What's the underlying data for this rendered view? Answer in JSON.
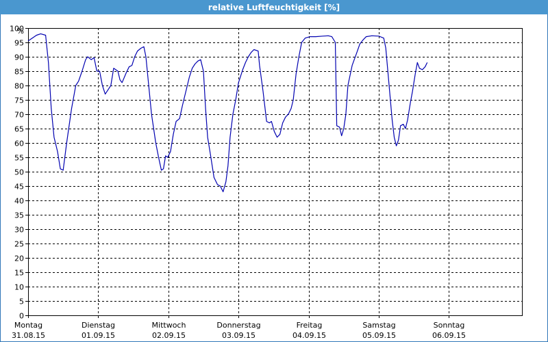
{
  "window": {
    "title": "relative Luftfeuchtigkeit [%]"
  },
  "colors": {
    "titlebar": "#4a97cf",
    "series": "#0000b0",
    "grid": "#000000"
  },
  "chart_data": {
    "type": "line",
    "title": "relative Luftfeuchtigkeit [%]",
    "ylabel": "%",
    "ylim": [
      0,
      100
    ],
    "ytick_step": 5,
    "yticks": [
      "0",
      "5",
      "10",
      "15",
      "20",
      "25",
      "30",
      "35",
      "40",
      "45",
      "50",
      "55",
      "60",
      "65",
      "70",
      "75",
      "80",
      "85",
      "90",
      "95",
      "100"
    ],
    "grid": true,
    "x_days": [
      {
        "day": "Montag",
        "date": "31.08.15"
      },
      {
        "day": "Dienstag",
        "date": "01.09.15"
      },
      {
        "day": "Mittwoch",
        "date": "02.09.15"
      },
      {
        "day": "Donnerstag",
        "date": "03.09.15"
      },
      {
        "day": "Freitag",
        "date": "04.09.15"
      },
      {
        "day": "Samstag",
        "date": "05.09.15"
      },
      {
        "day": "Sonntag",
        "date": "06.09.15"
      }
    ],
    "x_unit": "days since 31.08.15 00:00",
    "xlim": [
      0,
      7
    ],
    "series": [
      {
        "name": "relative Luftfeuchtigkeit",
        "points": [
          [
            0.0,
            95.5
          ],
          [
            0.06,
            96.5
          ],
          [
            0.12,
            97.5
          ],
          [
            0.18,
            98.0
          ],
          [
            0.25,
            97.5
          ],
          [
            0.29,
            88.0
          ],
          [
            0.33,
            72.0
          ],
          [
            0.37,
            62.0
          ],
          [
            0.42,
            57.0
          ],
          [
            0.46,
            51.0
          ],
          [
            0.5,
            50.5
          ],
          [
            0.55,
            60.0
          ],
          [
            0.62,
            72.0
          ],
          [
            0.68,
            80.0
          ],
          [
            0.72,
            81.5
          ],
          [
            0.77,
            85.0
          ],
          [
            0.82,
            89.0
          ],
          [
            0.85,
            90.0
          ],
          [
            0.9,
            89.0
          ],
          [
            0.94,
            89.7
          ],
          [
            0.98,
            85.0
          ],
          [
            1.02,
            85.0
          ],
          [
            1.06,
            80.0
          ],
          [
            1.1,
            77.0
          ],
          [
            1.14,
            78.5
          ],
          [
            1.18,
            80.0
          ],
          [
            1.22,
            86.0
          ],
          [
            1.28,
            85.0
          ],
          [
            1.31,
            82.0
          ],
          [
            1.34,
            81.0
          ],
          [
            1.4,
            84.5
          ],
          [
            1.44,
            86.5
          ],
          [
            1.48,
            87.0
          ],
          [
            1.52,
            90.0
          ],
          [
            1.56,
            92.0
          ],
          [
            1.61,
            93.0
          ],
          [
            1.65,
            93.5
          ],
          [
            1.68,
            90.0
          ],
          [
            1.72,
            80.0
          ],
          [
            1.76,
            70.0
          ],
          [
            1.82,
            60.0
          ],
          [
            1.86,
            55.0
          ],
          [
            1.9,
            50.5
          ],
          [
            1.93,
            51.0
          ],
          [
            1.96,
            55.5
          ],
          [
            1.99,
            55.0
          ],
          [
            2.03,
            57.0
          ],
          [
            2.07,
            63.0
          ],
          [
            2.11,
            67.5
          ],
          [
            2.16,
            68.5
          ],
          [
            2.2,
            73.0
          ],
          [
            2.25,
            78.0
          ],
          [
            2.3,
            83.0
          ],
          [
            2.34,
            86.0
          ],
          [
            2.38,
            87.5
          ],
          [
            2.42,
            88.5
          ],
          [
            2.46,
            89.0
          ],
          [
            2.5,
            85.0
          ],
          [
            2.53,
            72.0
          ],
          [
            2.56,
            62.0
          ],
          [
            2.6,
            56.0
          ],
          [
            2.65,
            48.0
          ],
          [
            2.7,
            45.5
          ],
          [
            2.74,
            45.0
          ],
          [
            2.78,
            43.0
          ],
          [
            2.82,
            46.5
          ],
          [
            2.85,
            52.0
          ],
          [
            2.88,
            62.0
          ],
          [
            2.92,
            70.0
          ],
          [
            2.96,
            75.0
          ],
          [
            3.0,
            81.0
          ],
          [
            3.06,
            85.5
          ],
          [
            3.1,
            88.0
          ],
          [
            3.14,
            90.0
          ],
          [
            3.18,
            91.5
          ],
          [
            3.22,
            92.5
          ],
          [
            3.28,
            92.0
          ],
          [
            3.3,
            87.0
          ],
          [
            3.35,
            78.0
          ],
          [
            3.4,
            67.5
          ],
          [
            3.44,
            67.0
          ],
          [
            3.47,
            67.5
          ],
          [
            3.51,
            64.0
          ],
          [
            3.55,
            62.0
          ],
          [
            3.59,
            63.0
          ],
          [
            3.63,
            67.0
          ],
          [
            3.67,
            69.0
          ],
          [
            3.71,
            70.0
          ],
          [
            3.75,
            72.0
          ],
          [
            3.78,
            75.0
          ],
          [
            3.82,
            84.0
          ],
          [
            3.86,
            90.0
          ],
          [
            3.9,
            95.0
          ],
          [
            3.95,
            96.5
          ],
          [
            4.02,
            97.0
          ],
          [
            4.1,
            97.0
          ],
          [
            4.2,
            97.2
          ],
          [
            4.28,
            97.3
          ],
          [
            4.33,
            97.0
          ],
          [
            4.38,
            95.0
          ],
          [
            4.4,
            66.0
          ],
          [
            4.44,
            65.5
          ],
          [
            4.47,
            62.5
          ],
          [
            4.5,
            65.0
          ],
          [
            4.53,
            70.0
          ],
          [
            4.56,
            80.0
          ],
          [
            4.62,
            87.0
          ],
          [
            4.68,
            91.0
          ],
          [
            4.73,
            94.5
          ],
          [
            4.78,
            96.0
          ],
          [
            4.82,
            97.0
          ],
          [
            4.9,
            97.3
          ],
          [
            5.0,
            97.2
          ],
          [
            5.07,
            96.5
          ],
          [
            5.1,
            93.0
          ],
          [
            5.14,
            82.0
          ],
          [
            5.19,
            68.0
          ],
          [
            5.22,
            62.0
          ],
          [
            5.25,
            59.0
          ],
          [
            5.28,
            61.0
          ],
          [
            5.31,
            66.0
          ],
          [
            5.35,
            66.5
          ],
          [
            5.38,
            65.0
          ],
          [
            5.41,
            68.0
          ],
          [
            5.45,
            74.0
          ],
          [
            5.48,
            78.0
          ],
          [
            5.52,
            84.0
          ],
          [
            5.55,
            88.0
          ],
          [
            5.58,
            86.0
          ],
          [
            5.62,
            85.5
          ],
          [
            5.66,
            86.5
          ],
          [
            5.69,
            88.0
          ]
        ]
      }
    ]
  }
}
